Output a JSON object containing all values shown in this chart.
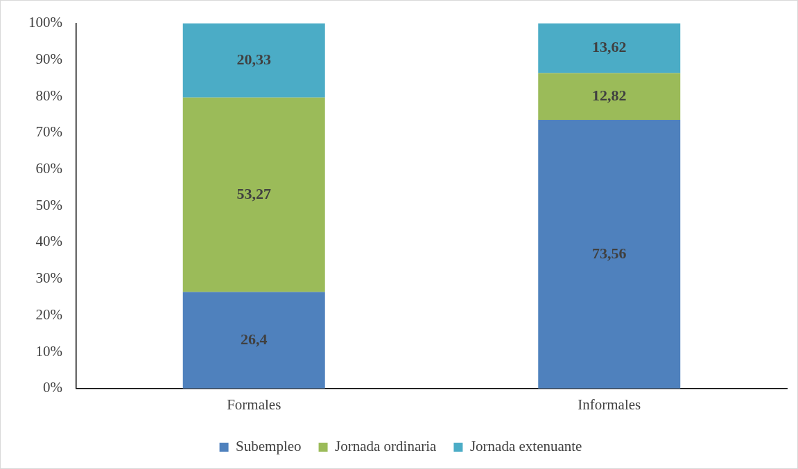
{
  "chart_data": {
    "type": "bar",
    "stacked": true,
    "categories": [
      "Formales",
      "Informales"
    ],
    "series": [
      {
        "name": "Subempleo",
        "color": "#4f81bd",
        "values": [
          26.4,
          73.56
        ],
        "value_labels": [
          "26,4",
          "73,56"
        ]
      },
      {
        "name": "Jornada ordinaria",
        "color": "#9bbb59",
        "values": [
          53.27,
          12.82
        ],
        "value_labels": [
          "53,27",
          "12,82"
        ]
      },
      {
        "name": "Jornada extenuante",
        "color": "#4bacc6",
        "values": [
          20.33,
          13.62
        ],
        "value_labels": [
          "20,33",
          "13,62"
        ]
      }
    ],
    "ylim": [
      0,
      100
    ],
    "yticks": [
      {
        "value": 0,
        "label": "0%"
      },
      {
        "value": 10,
        "label": "10%"
      },
      {
        "value": 20,
        "label": "20%"
      },
      {
        "value": 30,
        "label": "30%"
      },
      {
        "value": 40,
        "label": "40%"
      },
      {
        "value": 50,
        "label": "50%"
      },
      {
        "value": 60,
        "label": "60%"
      },
      {
        "value": 70,
        "label": "70%"
      },
      {
        "value": 80,
        "label": "80%"
      },
      {
        "value": 90,
        "label": "90%"
      },
      {
        "value": 100,
        "label": "100%"
      }
    ],
    "grid": false,
    "legend": "bottom"
  }
}
